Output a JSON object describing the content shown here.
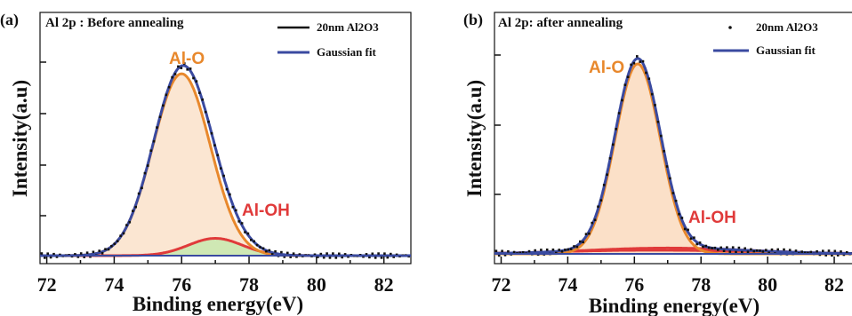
{
  "chart_data": [
    {
      "type": "line",
      "panel": "(a)",
      "title": "Al 2p :  Before annealing",
      "xlabel": "Binding energy(eV)",
      "ylabel": "Intensity(a.u)",
      "xlim": [
        71.8,
        82.8
      ],
      "ylim": [
        0,
        1.1
      ],
      "xticks": [
        72,
        74,
        76,
        78,
        80,
        82
      ],
      "legend": {
        "position": "top-right",
        "entries": [
          {
            "label": "20nm Al2O3",
            "style": "line",
            "color": "#111111"
          },
          {
            "label": "Gaussian fit",
            "style": "line",
            "color": "#3a4aa0"
          }
        ]
      },
      "annotations": [
        {
          "text": "Al-O",
          "color": "#e8882c"
        },
        {
          "text": "Al-OH",
          "color": "#e03a3a"
        }
      ],
      "baseline": 0.0,
      "components": [
        {
          "name": "Al-O",
          "center": 76.0,
          "height": 1.0,
          "width": 0.85,
          "fill": "#fbe6d2",
          "stroke": "#e8882c"
        },
        {
          "name": "Al-OH",
          "center": 77.0,
          "height": 0.095,
          "width": 0.8,
          "fill": "#cfe8b4",
          "stroke": "#e03a3a"
        }
      ],
      "series": [
        {
          "name": "20nm Al2O3",
          "x": [
            72,
            73,
            73.5,
            74,
            74.5,
            75,
            75.5,
            76,
            76.5,
            77,
            77.5,
            78,
            78.5,
            79,
            80,
            81,
            82,
            82.8
          ],
          "y": [
            0.01,
            0.02,
            0.03,
            0.08,
            0.22,
            0.48,
            0.82,
            1.03,
            0.95,
            0.68,
            0.38,
            0.18,
            0.07,
            0.03,
            0.01,
            0.005,
            0.0,
            0.0
          ]
        },
        {
          "name": "Gaussian fit",
          "x": [
            72,
            73,
            73.5,
            74,
            74.5,
            75,
            75.5,
            76,
            76.5,
            77,
            77.5,
            78,
            78.5,
            79,
            80,
            81,
            82,
            82.8
          ],
          "y": [
            0.0,
            0.01,
            0.03,
            0.07,
            0.22,
            0.5,
            0.84,
            1.02,
            0.93,
            0.66,
            0.37,
            0.17,
            0.06,
            0.02,
            0.01,
            0.0,
            0.0,
            0.0
          ]
        }
      ]
    },
    {
      "type": "line",
      "panel": "(b)",
      "title": "Al 2p: after annealing",
      "xlabel": "Binding energy(eV)",
      "ylabel": "Intensity(a.u)",
      "xlim": [
        71.8,
        82.8
      ],
      "ylim": [
        0,
        1.1
      ],
      "xticks": [
        72,
        74,
        76,
        78,
        80,
        82
      ],
      "legend": {
        "position": "top-right",
        "entries": [
          {
            "label": "20nm Al2O3",
            "style": "dot",
            "color": "#111111"
          },
          {
            "label": "Gaussian fit",
            "style": "line",
            "color": "#3a4aa0"
          }
        ]
      },
      "annotations": [
        {
          "text": "Al-O",
          "color": "#e8882c"
        },
        {
          "text": "Al-OH",
          "color": "#e03a3a"
        }
      ],
      "baseline": 0.0,
      "components": [
        {
          "name": "Al-O",
          "center": 76.1,
          "height": 0.98,
          "width": 0.68,
          "fill": "#fbe0c8",
          "stroke": "#e8882c"
        },
        {
          "name": "Al-OH",
          "center": 77.0,
          "height": 0.03,
          "width": 2.4,
          "fill": "none",
          "stroke": "#e03a3a"
        }
      ],
      "series": [
        {
          "name": "20nm Al2O3",
          "x": [
            72,
            73,
            74,
            74.5,
            75,
            75.5,
            76,
            76.5,
            77,
            77.5,
            78,
            78.5,
            79,
            80,
            81,
            82,
            82.8
          ],
          "y": [
            0.0,
            0.01,
            0.03,
            0.1,
            0.32,
            0.74,
            1.01,
            0.92,
            0.53,
            0.18,
            0.05,
            0.02,
            0.01,
            0.0,
            0.0,
            0.0,
            0.0
          ]
        },
        {
          "name": "Gaussian fit",
          "x": [
            72,
            73,
            74,
            74.5,
            75,
            75.5,
            76,
            76.5,
            77,
            77.5,
            78,
            78.5,
            79,
            80,
            81,
            82,
            82.8
          ],
          "y": [
            0.0,
            0.01,
            0.04,
            0.11,
            0.33,
            0.75,
            1.01,
            0.92,
            0.53,
            0.18,
            0.06,
            0.03,
            0.02,
            0.01,
            0.0,
            0.0,
            0.0
          ]
        }
      ]
    }
  ]
}
